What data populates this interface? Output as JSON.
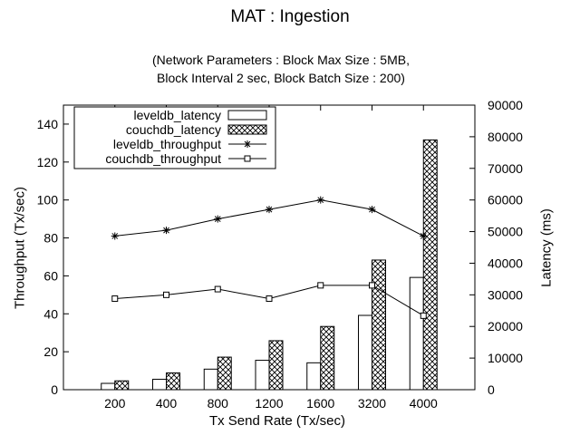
{
  "chart_data": {
    "type": "bar",
    "title": "MAT : Ingestion",
    "subtitle_line1": "(Network Parameters : Block Max Size : 5MB,",
    "subtitle_line2": "Block Interval 2 sec, Block Batch Size : 200)",
    "xlabel": "Tx Send Rate (Tx/sec)",
    "ylabel_left": "Throughput (Tx/sec)",
    "ylabel_right": "Latency (ms)",
    "categories": [
      "200",
      "400",
      "800",
      "1200",
      "1600",
      "3200",
      "4000"
    ],
    "ylim_left": [
      0,
      150
    ],
    "yticks_left": [
      0,
      20,
      40,
      60,
      80,
      100,
      120,
      140
    ],
    "ylim_right": [
      0,
      90000
    ],
    "yticks_right": [
      0,
      10000,
      20000,
      30000,
      40000,
      50000,
      60000,
      70000,
      80000,
      90000
    ],
    "grid": false,
    "legend_position": "top-left",
    "latency_series": [
      {
        "name": "leveldb_latency",
        "axis": "right",
        "pattern": "empty",
        "values": [
          2000,
          3300,
          6500,
          9300,
          8500,
          23500,
          35500
        ]
      },
      {
        "name": "couchdb_latency",
        "axis": "right",
        "pattern": "crosshatch",
        "values": [
          2800,
          5300,
          10300,
          15500,
          20000,
          41000,
          79000
        ]
      }
    ],
    "throughput_series": [
      {
        "name": "leveldb_throughput",
        "axis": "left",
        "marker": "star",
        "values": [
          81,
          84,
          90,
          95,
          100,
          95,
          81
        ]
      },
      {
        "name": "couchdb_throughput",
        "axis": "left",
        "marker": "square",
        "values": [
          48,
          50,
          53,
          48,
          55,
          55,
          39
        ]
      }
    ]
  }
}
